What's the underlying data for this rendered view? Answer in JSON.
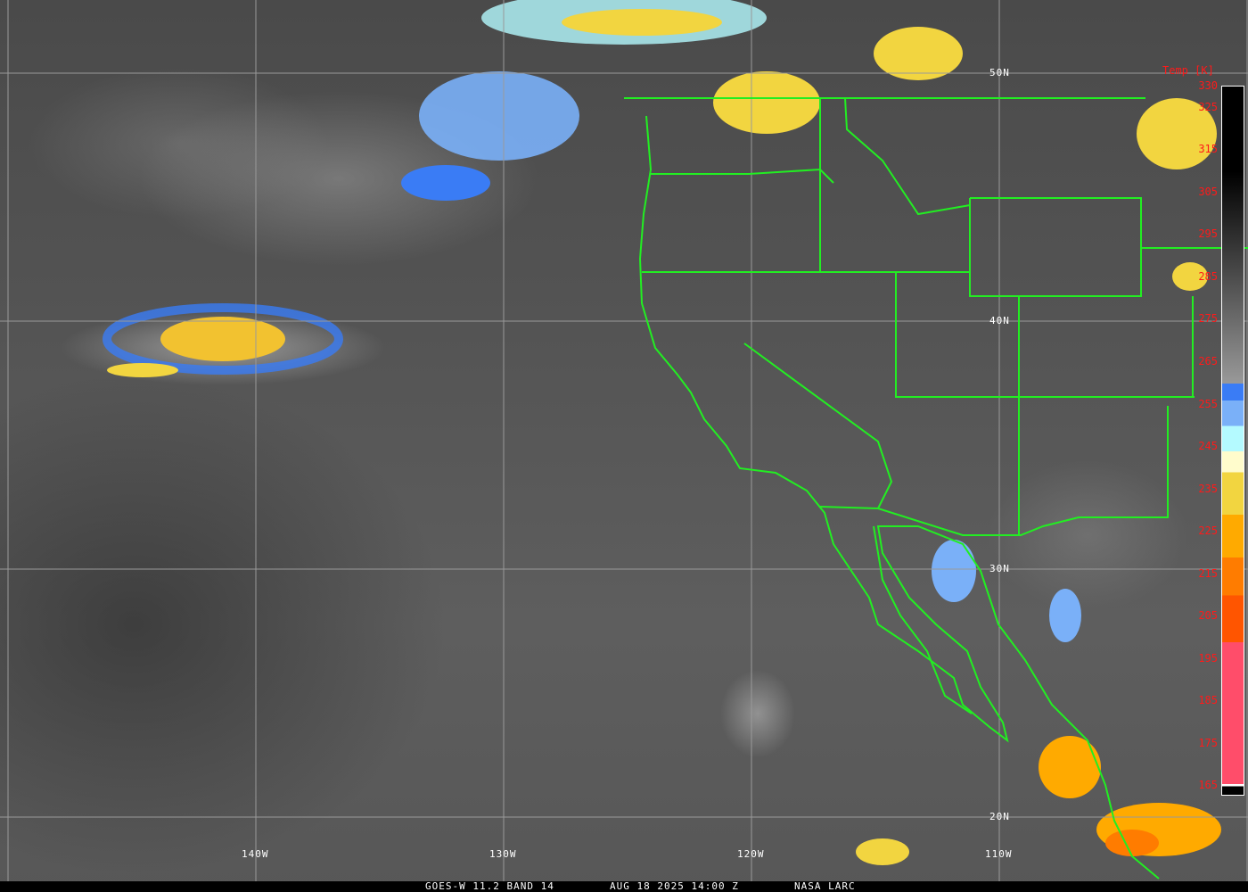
{
  "caption": {
    "satellite": "GOES-W 11.2 BAND 14",
    "datetime": "AUG 18 2025 14:00 Z",
    "credit": "NASA LARC"
  },
  "grid": {
    "longitudes": [
      "140W",
      "130W",
      "120W",
      "110W"
    ],
    "latitudes": [
      "50N",
      "40N",
      "30N",
      "20N"
    ]
  },
  "legend": {
    "title": "Temp [K]",
    "ticks": [
      "330",
      "325",
      "315",
      "305",
      "295",
      "285",
      "275",
      "265",
      "255",
      "245",
      "235",
      "225",
      "215",
      "205",
      "195",
      "185",
      "175",
      "165"
    ],
    "range_k": [
      163,
      330
    ],
    "colors": {
      "warm": "#000000",
      "mid": "#999999",
      "blue": "#3a7cf5",
      "light_blue": "#7ab0f8",
      "cyan": "#b4faff",
      "cream": "#fffccc",
      "yellow": "#f2d540",
      "orange": "#ffaa00",
      "dark_orange": "#ff7c00",
      "red_orange": "#ff5500",
      "pink": "#ff4d6a"
    }
  },
  "colors": {
    "borders": "#22ee22",
    "grid": "#9a9a9a"
  }
}
